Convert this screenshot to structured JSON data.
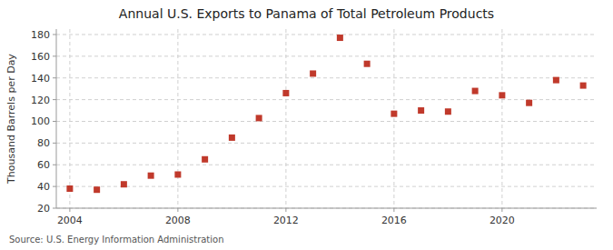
{
  "chart_data": {
    "type": "scatter",
    "title": "Annual U.S. Exports to Panama of Total Petroleum Products",
    "ylabel": "Thousand Barrels per Day",
    "source": "Source: U.S. Energy Information Administration",
    "x": [
      2004,
      2005,
      2006,
      2007,
      2008,
      2009,
      2010,
      2011,
      2012,
      2013,
      2014,
      2015,
      2016,
      2017,
      2018,
      2019,
      2020,
      2021,
      2022,
      2023
    ],
    "values": [
      38,
      37,
      42,
      50,
      51,
      65,
      85,
      103,
      126,
      144,
      177,
      153,
      107,
      110,
      109,
      128,
      124,
      117,
      138,
      133
    ],
    "xlim": [
      2003.5,
      2023.5
    ],
    "ylim": [
      20,
      185
    ],
    "xticks": [
      2004,
      2008,
      2012,
      2016,
      2020
    ],
    "yticks": [
      20,
      40,
      60,
      80,
      100,
      120,
      140,
      160,
      180
    ],
    "color": "#c0392b",
    "marker": "square",
    "grid": true
  }
}
